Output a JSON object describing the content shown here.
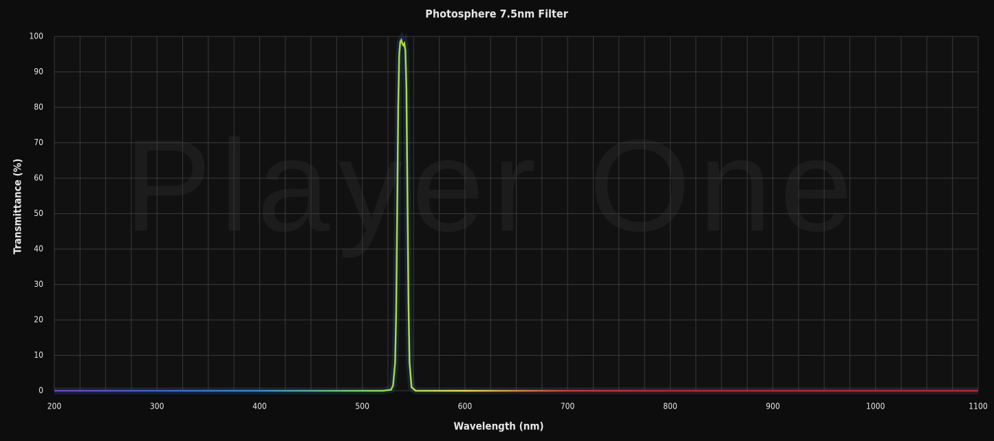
{
  "chart_data": {
    "type": "line",
    "title": "Photosphere 7.5nm Filter",
    "watermark": "Player One",
    "x_label": "Wavelength (nm)",
    "y_label": "Transmittance (%)",
    "xlim": [
      200,
      1100
    ],
    "ylim": [
      0,
      100
    ],
    "xticks": [
      200,
      300,
      400,
      500,
      600,
      700,
      800,
      900,
      1000,
      1100
    ],
    "xgrid": [
      200,
      225,
      250,
      275,
      300,
      325,
      350,
      375,
      400,
      425,
      450,
      475,
      500,
      525,
      550,
      575,
      600,
      625,
      650,
      675,
      700,
      725,
      750,
      775,
      800,
      825,
      850,
      875,
      900,
      925,
      950,
      975,
      1000,
      1025,
      1050,
      1075,
      1100
    ],
    "yticks": [
      0,
      10,
      20,
      30,
      40,
      50,
      60,
      70,
      80,
      90,
      100
    ],
    "grid": true,
    "line_colors": [
      "#7a3cc8",
      "#3b5fd8",
      "#2e8fd0",
      "#7ed84a",
      "#f0e030",
      "#e03020",
      "#d01e1e",
      "#d01e1e",
      "#d01e1e",
      "#d01e1e"
    ],
    "series": [
      {
        "name": "Photosphere 7.5nm",
        "x": [
          200,
          520,
          528,
          530,
          532,
          533,
          534,
          535,
          536,
          537,
          538,
          539,
          540,
          541,
          542,
          543,
          544,
          545,
          546,
          548,
          552,
          1100
        ],
        "values": [
          0,
          0,
          0.3,
          1.5,
          8,
          22,
          50,
          80,
          95,
          98.5,
          99,
          98,
          97.5,
          98,
          96,
          85,
          55,
          25,
          8,
          1,
          0,
          0
        ]
      }
    ]
  }
}
